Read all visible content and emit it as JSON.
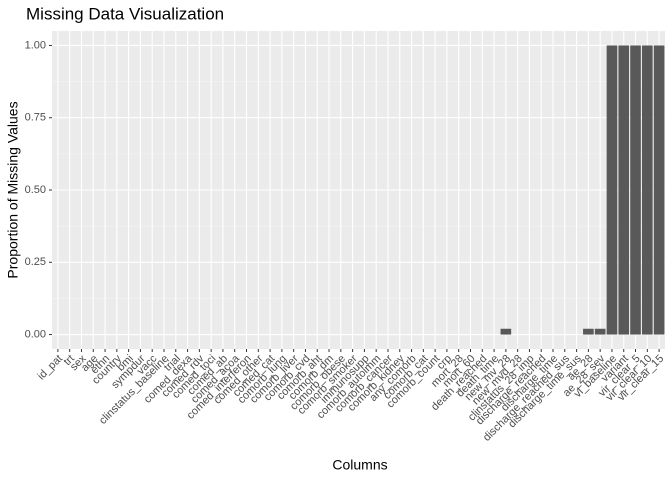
{
  "chart_data": {
    "type": "bar",
    "title": "Missing Data Visualization",
    "x_label": "Columns",
    "y_label": "Proportion of Missing Values",
    "categories": [
      "id_pat",
      "trt",
      "sex",
      "age",
      "ethn",
      "country",
      "bmi",
      "sympdur",
      "vacc",
      "clinstatus_baseline",
      "trial",
      "comed_dexa",
      "comed_rdv",
      "comed_toci",
      "comed_ab",
      "comed_acoa",
      "comed_interferon",
      "comed_other",
      "comed_cat",
      "comorb_lung",
      "comorb_liver",
      "comorb_cvd",
      "comorb_aht",
      "comorb_dm",
      "comorb_obese",
      "comorb_smoker",
      "immunosupp",
      "comorb_autoimm",
      "comorb_cancer",
      "comorb_kidney",
      "any_comorb",
      "comorb_cat",
      "comorb_count",
      "crp",
      "mort_28",
      "mort_60",
      "death_reached",
      "death_time",
      "new_mv_28",
      "new_mvd_28",
      "clinstatus_28_imp",
      "discharge_reached",
      "discharge_time",
      "discharge_reached_sus",
      "discharge_time_sus",
      "ae_28",
      "ae_28_sev",
      "vl_baseline",
      "variant",
      "vir_clear_5",
      "vir_clear_10",
      "vir_clear_15"
    ],
    "values": [
      0,
      0,
      0,
      0,
      0,
      0,
      0,
      0,
      0,
      0,
      0,
      0,
      0,
      0,
      0,
      0,
      0,
      0,
      0,
      0,
      0,
      0,
      0,
      0,
      0,
      0,
      0,
      0,
      0,
      0,
      0,
      0,
      0,
      0,
      0,
      0,
      0,
      0,
      0.02,
      0,
      0,
      0,
      0,
      0,
      0,
      0.02,
      0.02,
      1,
      1,
      1,
      1,
      1
    ],
    "color": "#595959",
    "ylim": [
      -0.05,
      1.05
    ],
    "yticks": [
      {
        "value": 0,
        "label": "0.00"
      },
      {
        "value": 0.25,
        "label": "0.25"
      },
      {
        "value": 0.5,
        "label": "0.50"
      },
      {
        "value": 0.75,
        "label": "0.75"
      },
      {
        "value": 1,
        "label": "1.00"
      }
    ],
    "grid": true
  }
}
